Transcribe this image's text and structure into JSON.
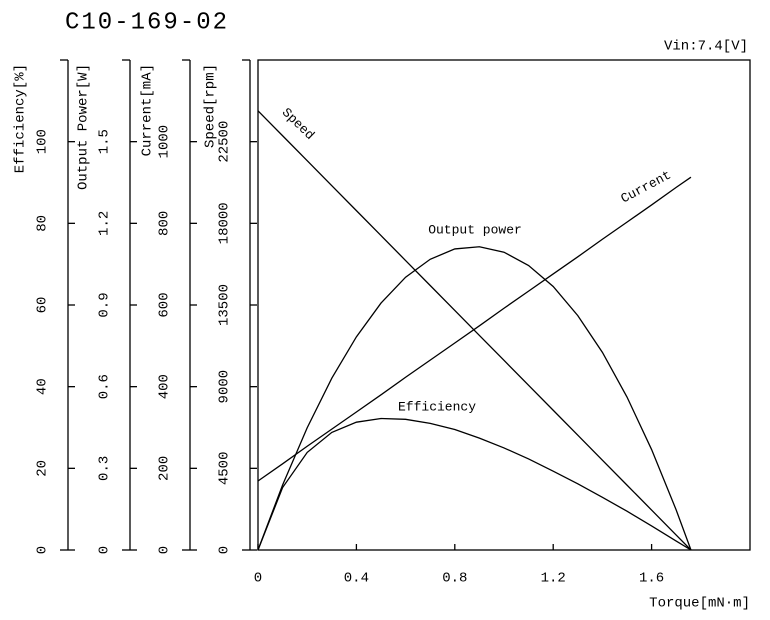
{
  "chart_data": {
    "type": "line",
    "title": "C10-169-02",
    "subtitle": "Vin:7.4[V]",
    "x_label": "Torque[mN·m]",
    "xlim": [
      0,
      2
    ],
    "xticks": [
      0,
      0.4,
      0.8,
      1.2,
      1.6
    ],
    "y_axes": [
      {
        "label": "Efficiency[%]",
        "lim": [
          0,
          120
        ],
        "ticks": [
          0,
          20,
          40,
          60,
          80,
          100
        ]
      },
      {
        "label": "Output Power[W]",
        "lim": [
          0,
          1.8
        ],
        "ticks": [
          0,
          0.3,
          0.6,
          0.9,
          1.2,
          1.5
        ]
      },
      {
        "label": "Current[mA]",
        "lim": [
          0,
          1200
        ],
        "ticks": [
          0,
          200,
          400,
          600,
          800,
          1000
        ]
      },
      {
        "label": "Speed[rpm]",
        "lim": [
          0,
          27000
        ],
        "ticks": [
          0,
          4500,
          9000,
          13500,
          18000,
          22500
        ]
      }
    ],
    "x": [
      0,
      0.1,
      0.2,
      0.3,
      0.4,
      0.5,
      0.6,
      0.7,
      0.8,
      0.9,
      1.0,
      1.1,
      1.2,
      1.3,
      1.4,
      1.5,
      1.6,
      1.7,
      1.76
    ],
    "series": [
      {
        "name": "Speed",
        "color": "#000000",
        "axis": 3,
        "values": [
          24200,
          22825,
          21450,
          20075,
          18700,
          17325,
          15950,
          14575,
          13200,
          11825,
          10450,
          9075,
          7700,
          6325,
          4950,
          3575,
          2200,
          825,
          0
        ]
      },
      {
        "name": "Current",
        "color": "#000000",
        "axis": 2,
        "values": [
          169,
          211,
          254,
          296,
          338,
          380,
          423,
          465,
          507,
          549,
          592,
          634,
          676,
          718,
          761,
          803,
          845,
          888,
          913
        ]
      },
      {
        "name": "Output power",
        "color": "#000000",
        "axis": 1,
        "values": [
          0,
          0.239,
          0.449,
          0.631,
          0.783,
          0.907,
          1.002,
          1.068,
          1.106,
          1.114,
          1.094,
          1.045,
          0.968,
          0.861,
          0.726,
          0.562,
          0.369,
          0.147,
          0
        ]
      },
      {
        "name": "Efficiency",
        "color": "#000000",
        "axis": 0,
        "values": [
          0,
          15.3,
          23.9,
          28.8,
          31.3,
          32.2,
          32.0,
          31.0,
          29.5,
          27.4,
          25.0,
          22.3,
          19.3,
          16.2,
          12.9,
          9.5,
          5.9,
          2.2,
          0
        ]
      }
    ]
  }
}
